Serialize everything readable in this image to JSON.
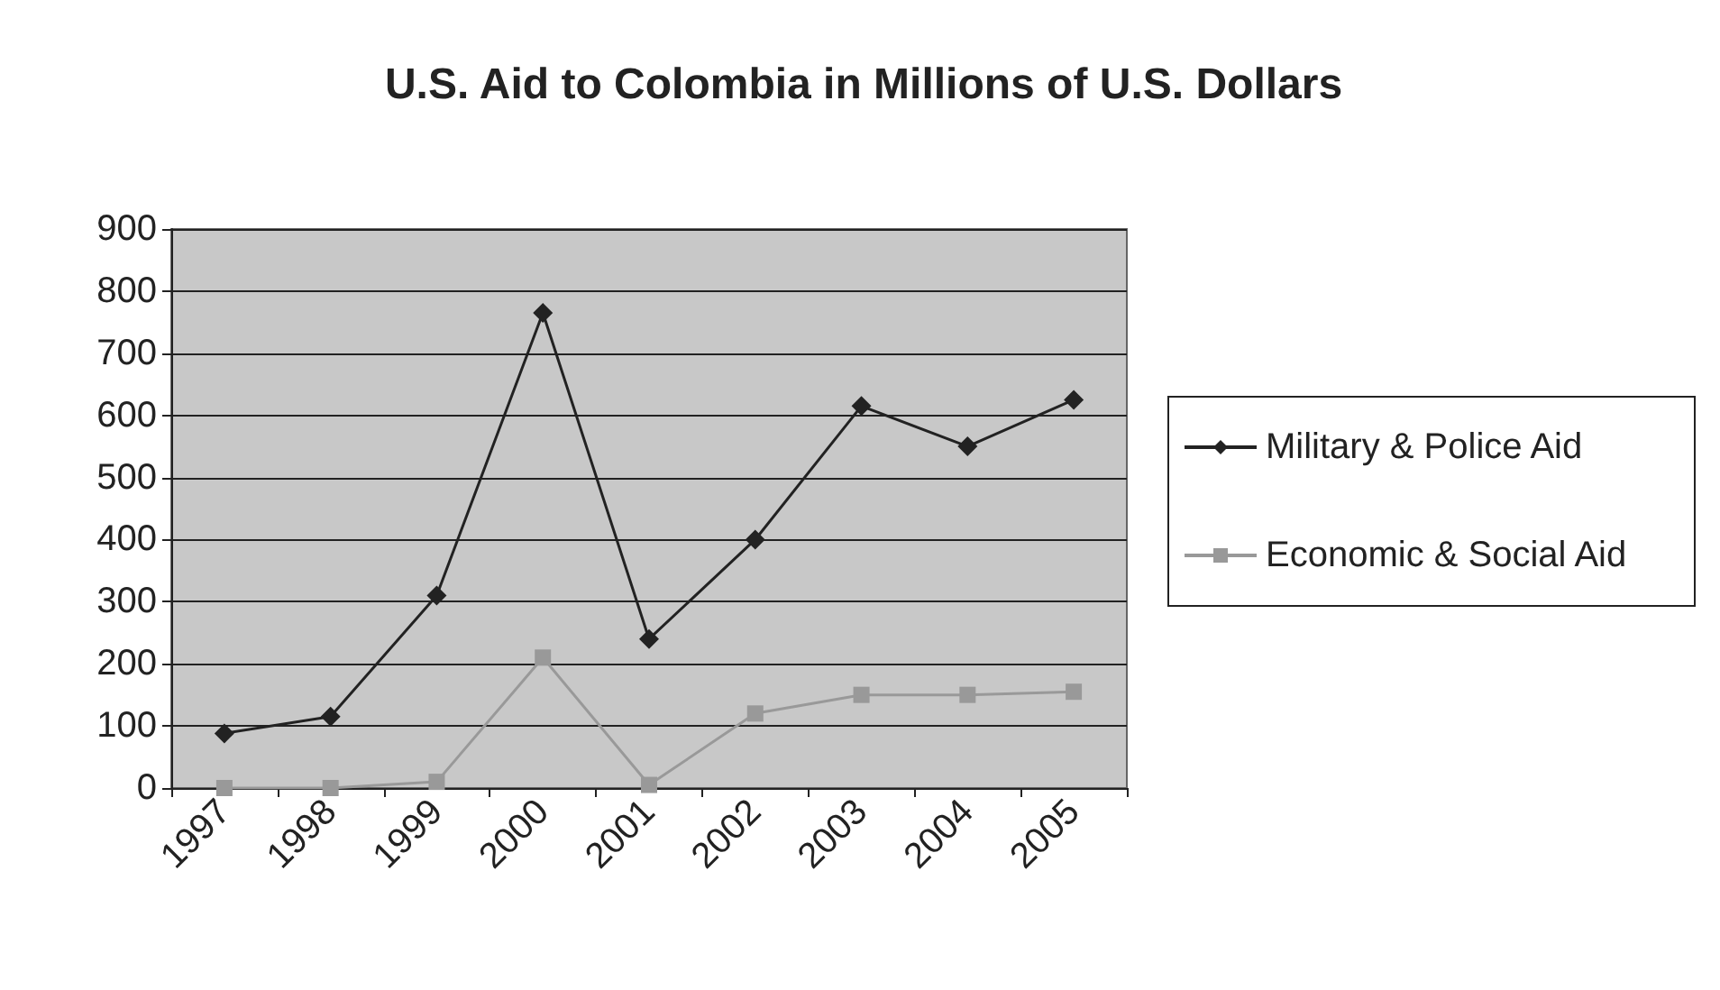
{
  "chart_data": {
    "type": "line",
    "title": "U.S. Aid to Colombia in Millions of U.S. Dollars",
    "categories": [
      "1997",
      "1998",
      "1999",
      "2000",
      "2001",
      "2002",
      "2003",
      "2004",
      "2005"
    ],
    "series": [
      {
        "name": "Military & Police Aid",
        "color": "#222222",
        "marker": "diamond",
        "values": [
          88,
          115,
          310,
          765,
          240,
          400,
          615,
          550,
          625
        ]
      },
      {
        "name": "Economic & Social Aid",
        "color": "#999999",
        "marker": "square",
        "values": [
          0,
          0,
          10,
          210,
          5,
          120,
          150,
          150,
          155
        ]
      }
    ],
    "ylim": [
      0,
      900
    ],
    "yticks": [
      0,
      100,
      200,
      300,
      400,
      500,
      600,
      700,
      800,
      900
    ],
    "grid": "y",
    "legend": "right"
  }
}
